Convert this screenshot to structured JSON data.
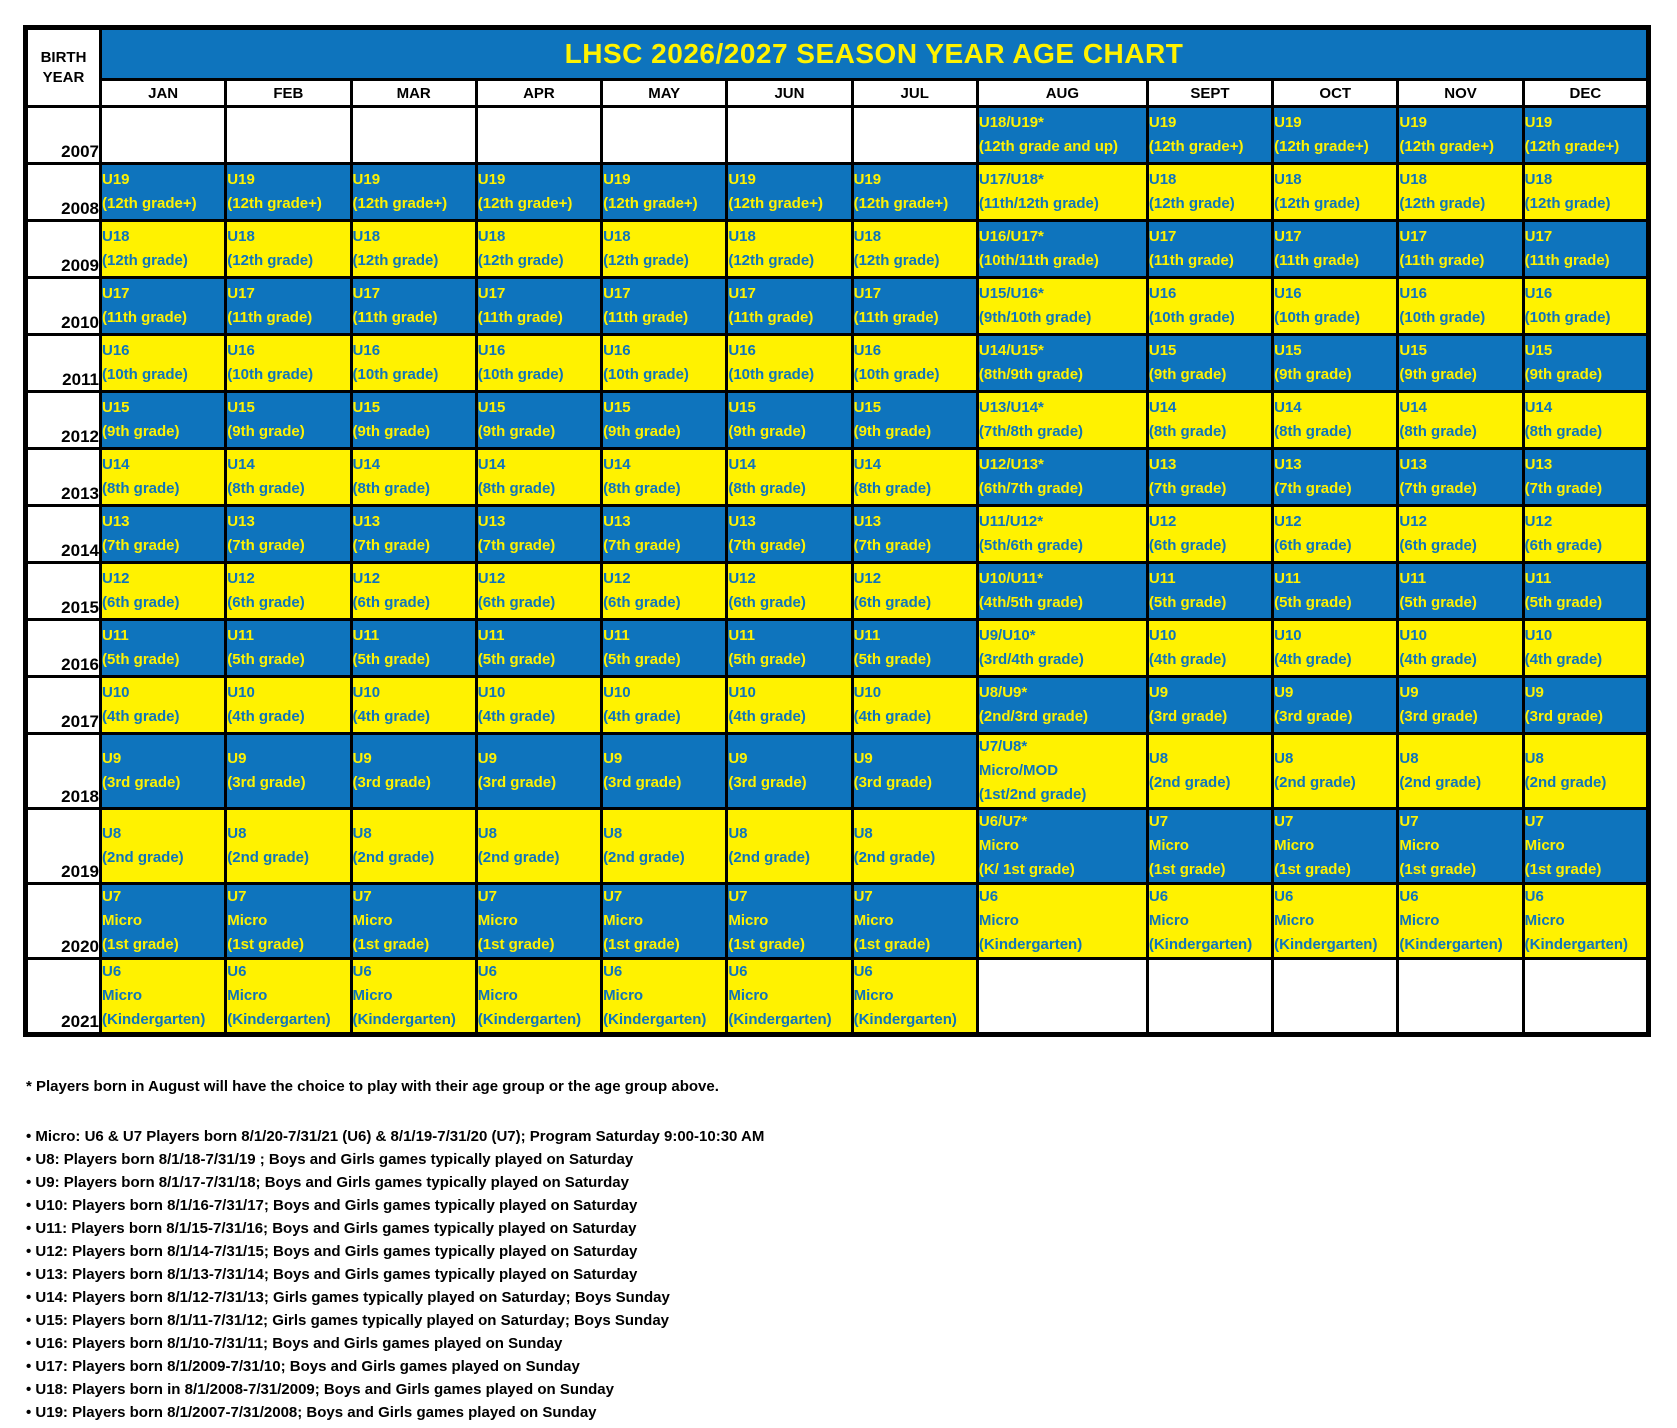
{
  "colors": {
    "cell_blue": "#0e74bd",
    "cell_yellow": "#fff200",
    "border_black": "#000000",
    "text_on_blue": "#fff200",
    "text_on_yellow": "#0e74bd"
  },
  "table": {
    "title": "LHSC 2026/2027 SEASON YEAR AGE CHART",
    "corner_line1": "BIRTH",
    "corner_line2": "YEAR",
    "months": [
      "JAN",
      "FEB",
      "MAR",
      "APR",
      "MAY",
      "JUN",
      "JUL",
      "AUG",
      "SEPT",
      "OCT",
      "NOV",
      "DEC"
    ],
    "rows": [
      {
        "year": "2007",
        "jan_jul": {
          "bg": "white",
          "lines": []
        },
        "aug": {
          "bg": "blue",
          "lines": [
            "U18/U19*",
            "(12th grade and up)"
          ]
        },
        "sep_dec": {
          "bg": "blue",
          "lines": [
            "U19",
            "(12th grade+)"
          ]
        }
      },
      {
        "year": "2008",
        "jan_jul": {
          "bg": "blue",
          "lines": [
            "U19",
            "(12th grade+)"
          ]
        },
        "aug": {
          "bg": "yellow",
          "lines": [
            "U17/U18*",
            "(11th/12th grade)"
          ]
        },
        "sep_dec": {
          "bg": "yellow",
          "lines": [
            "U18",
            "(12th grade)"
          ]
        }
      },
      {
        "year": "2009",
        "jan_jul": {
          "bg": "yellow",
          "lines": [
            "U18",
            "(12th grade)"
          ]
        },
        "aug": {
          "bg": "blue",
          "lines": [
            "U16/U17*",
            "(10th/11th grade)"
          ]
        },
        "sep_dec": {
          "bg": "blue",
          "lines": [
            "U17",
            "(11th grade)"
          ]
        }
      },
      {
        "year": "2010",
        "jan_jul": {
          "bg": "blue",
          "lines": [
            "U17",
            "(11th grade)"
          ]
        },
        "aug": {
          "bg": "yellow",
          "lines": [
            "U15/U16*",
            "(9th/10th grade)"
          ]
        },
        "sep_dec": {
          "bg": "yellow",
          "lines": [
            "U16",
            "(10th grade)"
          ]
        }
      },
      {
        "year": "2011",
        "jan_jul": {
          "bg": "yellow",
          "lines": [
            "U16",
            "(10th grade)"
          ]
        },
        "aug": {
          "bg": "blue",
          "lines": [
            "U14/U15*",
            "(8th/9th grade)"
          ]
        },
        "sep_dec": {
          "bg": "blue",
          "lines": [
            "U15",
            "(9th grade)"
          ]
        }
      },
      {
        "year": "2012",
        "jan_jul": {
          "bg": "blue",
          "lines": [
            "U15",
            "(9th grade)"
          ]
        },
        "aug": {
          "bg": "yellow",
          "lines": [
            "U13/U14*",
            "(7th/8th grade)"
          ]
        },
        "sep_dec": {
          "bg": "yellow",
          "lines": [
            "U14",
            "(8th grade)"
          ]
        }
      },
      {
        "year": "2013",
        "jan_jul": {
          "bg": "yellow",
          "lines": [
            "U14",
            "(8th grade)"
          ]
        },
        "aug": {
          "bg": "blue",
          "lines": [
            "U12/U13*",
            "(6th/7th grade)"
          ]
        },
        "sep_dec": {
          "bg": "blue",
          "lines": [
            "U13",
            "(7th grade)"
          ]
        }
      },
      {
        "year": "2014",
        "jan_jul": {
          "bg": "blue",
          "lines": [
            "U13",
            "(7th grade)"
          ]
        },
        "aug": {
          "bg": "yellow",
          "lines": [
            "U11/U12*",
            "(5th/6th grade)"
          ]
        },
        "sep_dec": {
          "bg": "yellow",
          "lines": [
            "U12",
            "(6th grade)"
          ]
        }
      },
      {
        "year": "2015",
        "jan_jul": {
          "bg": "yellow",
          "lines": [
            "U12",
            "(6th grade)"
          ]
        },
        "aug": {
          "bg": "blue",
          "lines": [
            "U10/U11*",
            "(4th/5th grade)"
          ]
        },
        "sep_dec": {
          "bg": "blue",
          "lines": [
            "U11",
            "(5th grade)"
          ]
        }
      },
      {
        "year": "2016",
        "jan_jul": {
          "bg": "blue",
          "lines": [
            "U11",
            "(5th grade)"
          ]
        },
        "aug": {
          "bg": "yellow",
          "lines": [
            "U9/U10*",
            "(3rd/4th grade)"
          ]
        },
        "sep_dec": {
          "bg": "yellow",
          "lines": [
            "U10",
            "(4th grade)"
          ]
        }
      },
      {
        "year": "2017",
        "jan_jul": {
          "bg": "yellow",
          "lines": [
            "U10",
            "(4th grade)"
          ]
        },
        "aug": {
          "bg": "blue",
          "lines": [
            "U8/U9*",
            "(2nd/3rd grade)"
          ]
        },
        "sep_dec": {
          "bg": "blue",
          "lines": [
            "U9",
            "(3rd grade)"
          ]
        }
      },
      {
        "year": "2018",
        "jan_jul": {
          "bg": "blue",
          "lines": [
            "U9",
            "(3rd grade)"
          ]
        },
        "aug": {
          "bg": "yellow",
          "lines": [
            "U7/U8*",
            "Micro/MOD",
            "(1st/2nd grade)"
          ]
        },
        "sep_dec": {
          "bg": "yellow",
          "lines": [
            "U8",
            "(2nd grade)"
          ]
        }
      },
      {
        "year": "2019",
        "jan_jul": {
          "bg": "yellow",
          "lines": [
            "U8",
            "(2nd grade)"
          ]
        },
        "aug": {
          "bg": "blue",
          "lines": [
            "U6/U7*",
            "Micro",
            "(K/ 1st grade)"
          ]
        },
        "sep_dec": {
          "bg": "blue",
          "lines": [
            "U7",
            "Micro",
            "(1st grade)"
          ]
        }
      },
      {
        "year": "2020",
        "jan_jul": {
          "bg": "blue",
          "lines": [
            "U7",
            "Micro",
            "(1st grade)"
          ]
        },
        "aug": {
          "bg": "yellow",
          "lines": [
            "U6",
            "Micro",
            "(Kindergarten)"
          ]
        },
        "sep_dec": {
          "bg": "yellow",
          "lines": [
            "U6",
            "Micro",
            "(Kindergarten)"
          ]
        }
      },
      {
        "year": "2021",
        "jan_jul": {
          "bg": "yellow",
          "lines": [
            "U6",
            "Micro",
            "(Kindergarten)"
          ]
        },
        "aug": {
          "bg": "white",
          "lines": []
        },
        "sep_dec": {
          "bg": "white",
          "lines": []
        }
      }
    ]
  },
  "notes": {
    "asterisk": "* Players born in August will have the choice to play with their age group or the age group above.",
    "bullets": [
      "• Micro: U6 & U7 Players born 8/1/20-7/31/21 (U6) & 8/1/19-7/31/20 (U7); Program Saturday 9:00-10:30 AM",
      "• U8: Players born 8/1/18-7/31/19 ; Boys and Girls games typically played on Saturday",
      "• U9: Players born 8/1/17-7/31/18; Boys and Girls games typically played on Saturday",
      "• U10: Players born 8/1/16-7/31/17; Boys and Girls games typically played on Saturday",
      "• U11: Players born 8/1/15-7/31/16; Boys and Girls games typically played on Saturday",
      "• U12: Players born 8/1/14-7/31/15; Boys and Girls games typically played on Saturday",
      "• U13: Players born 8/1/13-7/31/14; Boys and Girls games typically played on Saturday",
      "• U14: Players born 8/1/12-7/31/13; Girls games typically played on Saturday; Boys Sunday",
      "• U15: Players born 8/1/11-7/31/12; Girls games typically played on Saturday; Boys Sunday",
      "• U16: Players born 8/1/10-7/31/11; Boys and Girls games played on Sunday",
      "• U17: Players born 8/1/2009-7/31/10; Boys and Girls games played on Sunday",
      "• U18: Players born in 8/1/2008-7/31/2009; Boys and Girls games played on Sunday",
      "• U19: Players born 8/1/2007-7/31/2008; Boys and Girls games played on Sunday"
    ]
  }
}
